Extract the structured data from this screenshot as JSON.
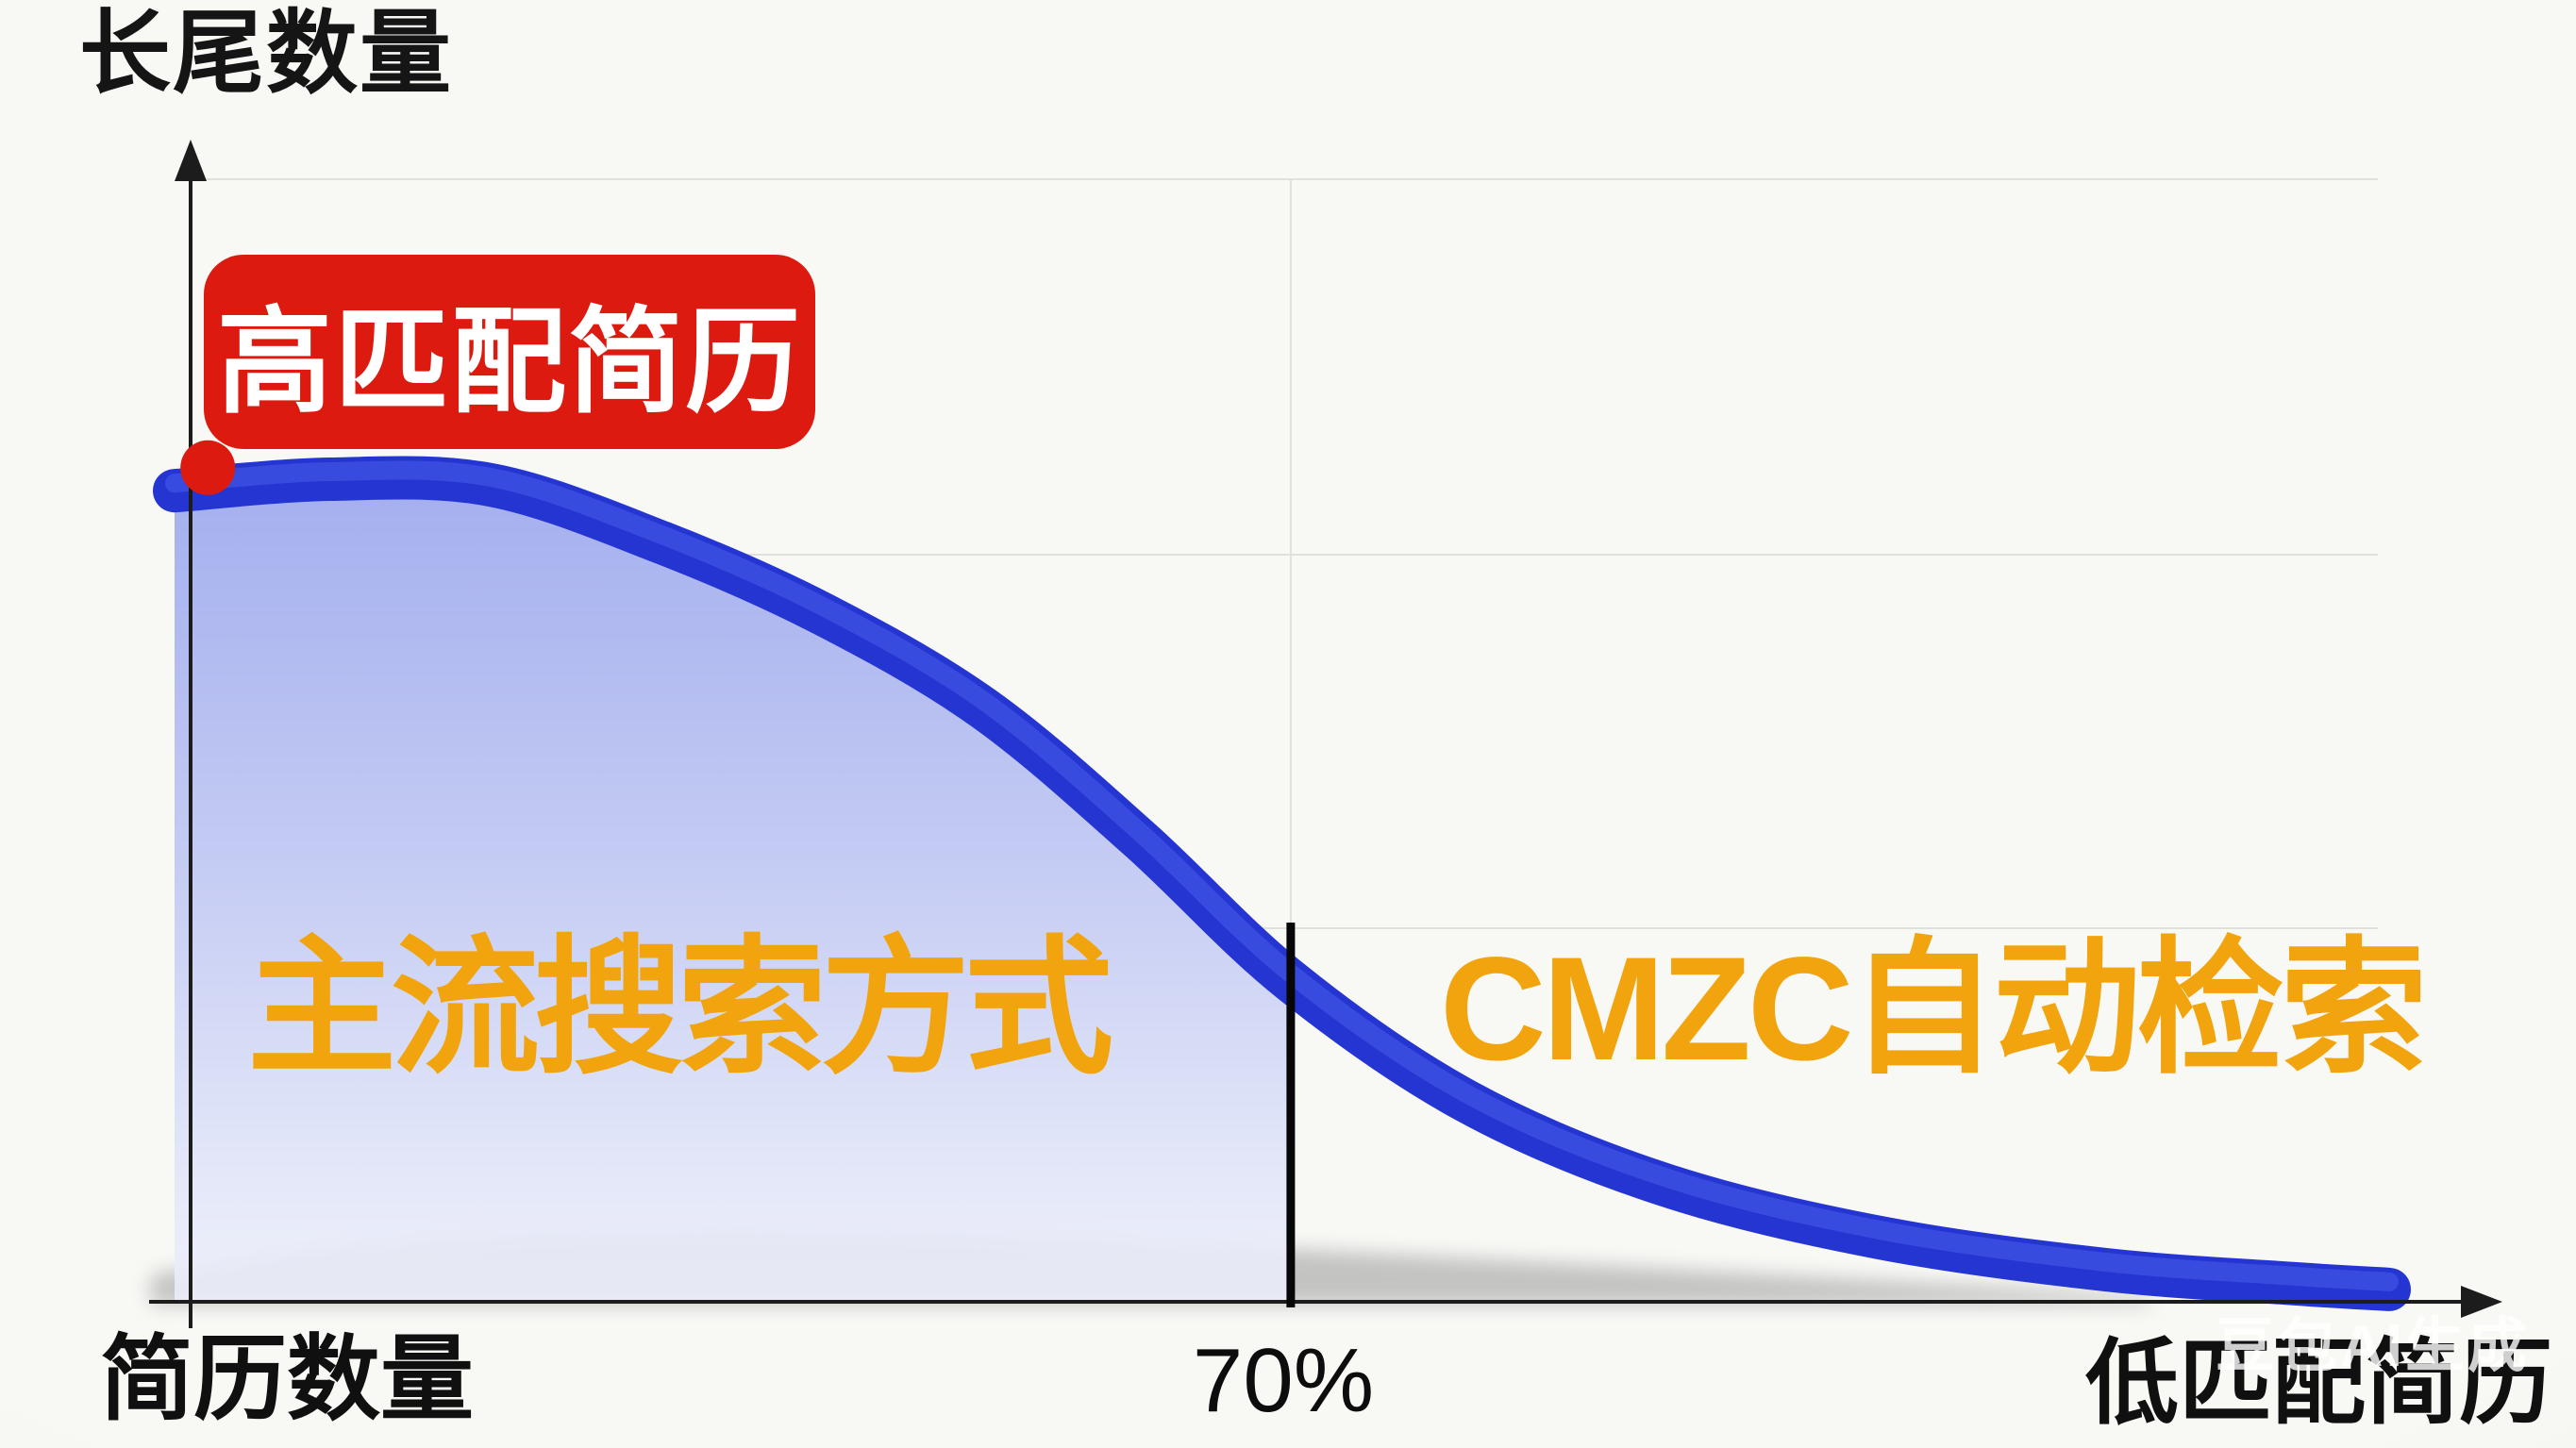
{
  "colors": {
    "curve_blue": "#2435d2",
    "curve_highlight": "#4f67ef",
    "area_fill_top": "#a3aeee",
    "area_fill_bottom": "#edeffb",
    "accent_red": "#dc1a10",
    "label_orange": "#f1a40d",
    "axis_black": "#1c1c1c",
    "grid_gray": "#dcdcd8",
    "background": "#f7f7f4"
  },
  "labels": {
    "y_axis_title": "长尾数量",
    "x_axis_left": "简历数量",
    "x_axis_right": "低匹配简历",
    "threshold": "70%",
    "start_badge": "高匹配简历",
    "region_left": "主流搜索方式",
    "region_right": "CMZC自动检索",
    "watermark": "豆包AI生成"
  },
  "chart_data": {
    "type": "area",
    "title": "",
    "xlabel": "简历数量",
    "ylabel": "长尾数量",
    "x_axis_end_label": "低匹配简历",
    "legend": [],
    "grid": true,
    "description": "Long-tail decay curve: number of resumes vs match quality; high-match resumes at head of curve, long tail of low-match resumes; vertical threshold line at 70% splits mainstream search (left) from CMZC automatic retrieval (right).",
    "curve_points": [
      [
        0.0,
        0.986
      ],
      [
        0.07,
        1.0
      ],
      [
        0.143,
        0.993
      ],
      [
        0.22,
        0.923
      ],
      [
        0.292,
        0.837
      ],
      [
        0.365,
        0.722
      ],
      [
        0.435,
        0.564
      ],
      [
        0.504,
        0.39
      ],
      [
        0.584,
        0.243
      ],
      [
        0.672,
        0.143
      ],
      [
        0.77,
        0.078
      ],
      [
        0.872,
        0.039
      ],
      [
        0.957,
        0.022
      ],
      [
        1.0,
        0.015
      ]
    ],
    "threshold": {
      "label": "70%",
      "position": 0.504
    },
    "annotations": {
      "start_point": {
        "label": "高匹配简历",
        "x": 0.015,
        "y": 1.014
      },
      "region_left": {
        "label": "主流搜索方式"
      },
      "region_right": {
        "label": "CMZC自动检索"
      }
    },
    "xlim": [
      0,
      1
    ],
    "ylim": [
      0,
      1.05
    ]
  }
}
